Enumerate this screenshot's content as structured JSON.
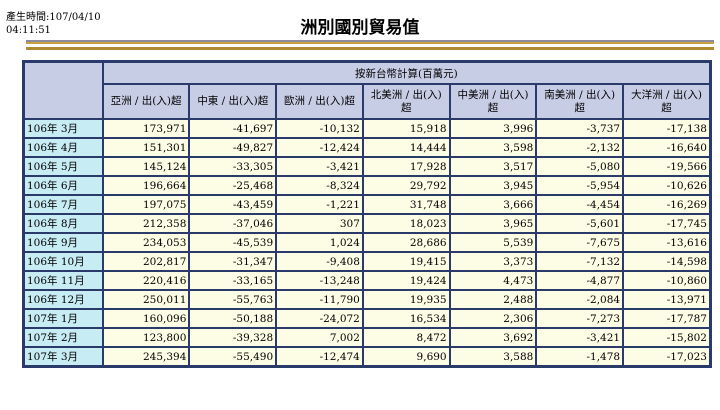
{
  "generated": {
    "label": "產生時間:107/04/10",
    "time": "04:11:51"
  },
  "title": "洲別國別貿易值",
  "table": {
    "group_header": "按新台幣計算(百萬元)",
    "columns": [
      "亞洲 / 出(入)超",
      "中東 / 出(入)超",
      "歐洲 / 出(入)超",
      "北美洲 / 出(入)超",
      "中美洲 / 出(入)超",
      "南美洲 / 出(入)超",
      "大洋洲 / 出(入)超"
    ],
    "rows": [
      {
        "label": "106年 3月",
        "values": [
          "173,971",
          "-41,697",
          "-10,132",
          "15,918",
          "3,996",
          "-3,737",
          "-17,138"
        ]
      },
      {
        "label": "106年 4月",
        "values": [
          "151,301",
          "-49,827",
          "-12,424",
          "14,444",
          "3,598",
          "-2,132",
          "-16,640"
        ]
      },
      {
        "label": "106年 5月",
        "values": [
          "145,124",
          "-33,305",
          "-3,421",
          "17,928",
          "3,517",
          "-5,080",
          "-19,566"
        ]
      },
      {
        "label": "106年 6月",
        "values": [
          "196,664",
          "-25,468",
          "-8,324",
          "29,792",
          "3,945",
          "-5,954",
          "-10,626"
        ]
      },
      {
        "label": "106年 7月",
        "values": [
          "197,075",
          "-43,459",
          "-1,221",
          "31,748",
          "3,666",
          "-4,454",
          "-16,269"
        ]
      },
      {
        "label": "106年 8月",
        "values": [
          "212,358",
          "-37,046",
          "307",
          "18,023",
          "3,965",
          "-5,601",
          "-17,745"
        ]
      },
      {
        "label": "106年 9月",
        "values": [
          "234,053",
          "-45,539",
          "1,024",
          "28,686",
          "5,539",
          "-7,675",
          "-13,616"
        ]
      },
      {
        "label": "106年 10月",
        "values": [
          "202,817",
          "-31,347",
          "-9,408",
          "19,415",
          "3,373",
          "-7,132",
          "-14,598"
        ]
      },
      {
        "label": "106年 11月",
        "values": [
          "220,416",
          "-33,165",
          "-13,248",
          "19,424",
          "4,473",
          "-4,877",
          "-10,860"
        ]
      },
      {
        "label": "106年 12月",
        "values": [
          "250,011",
          "-55,763",
          "-11,790",
          "19,935",
          "2,488",
          "-2,084",
          "-13,971"
        ]
      },
      {
        "label": "107年 1月",
        "values": [
          "160,096",
          "-50,188",
          "-24,072",
          "16,534",
          "2,306",
          "-7,273",
          "-17,787"
        ]
      },
      {
        "label": "107年 2月",
        "values": [
          "123,800",
          "-39,328",
          "7,002",
          "8,472",
          "3,692",
          "-3,421",
          "-15,802"
        ]
      },
      {
        "label": "107年 3月",
        "values": [
          "245,394",
          "-55,490",
          "-12,474",
          "9,690",
          "3,588",
          "-1,478",
          "-17,023"
        ]
      }
    ]
  }
}
